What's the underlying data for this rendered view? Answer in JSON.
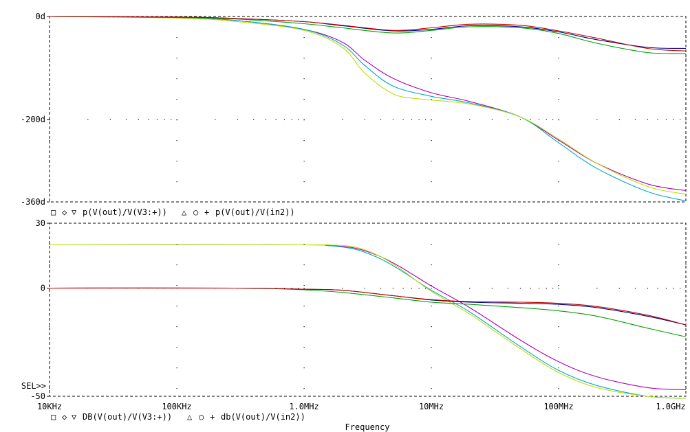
{
  "colors": {
    "magenta": "#b000b0",
    "cyan": "#00a8c8",
    "yellow": "#b8e000",
    "navy": "#000080",
    "green": "#00a000",
    "red": "#c00000"
  },
  "xaxis": {
    "label": "Frequency",
    "scale": "log",
    "range_hz": [
      10000,
      1000000000
    ],
    "ticks": [
      {
        "hz": 10000,
        "label": "10KHz"
      },
      {
        "hz": 100000,
        "label": "100KHz"
      },
      {
        "hz": 1000000,
        "label": "1.0MHz"
      },
      {
        "hz": 10000000,
        "label": "10MHz"
      },
      {
        "hz": 100000000,
        "label": "100MHz"
      },
      {
        "hz": 1000000000,
        "label": "1.0GHz"
      }
    ]
  },
  "sel_marker": "SEL>>",
  "chart_data": [
    {
      "type": "line",
      "panel": "phase",
      "ylim": [
        -360,
        0
      ],
      "yticks": [
        {
          "value": 0,
          "label": "0d"
        },
        {
          "value": -200,
          "label": "-200d"
        },
        {
          "value": -360,
          "label": "-360d"
        }
      ],
      "legend": [
        {
          "symbol": "□",
          "color": "magenta"
        },
        {
          "symbol": "◇",
          "color": "cyan"
        },
        {
          "symbol": "▽",
          "color": "yellow"
        },
        {
          "text": "p(V(out)/V(V3:+))"
        },
        {
          "symbol": "△",
          "color": "navy"
        },
        {
          "symbol": "○",
          "color": "green"
        },
        {
          "symbol": "+",
          "color": "red"
        },
        {
          "text": "p(V(out)/V(in2))"
        }
      ],
      "series": [
        {
          "color": "magenta",
          "x": [
            10000,
            100000,
            300000,
            1000000,
            2000000,
            3000000,
            5000000,
            10000000,
            20000000,
            50000000,
            100000000,
            200000000,
            500000000,
            1000000000
          ],
          "y": [
            0,
            -2,
            -8,
            -25,
            -50,
            -85,
            -120,
            -148,
            -165,
            -195,
            -240,
            -285,
            -325,
            -338
          ]
        },
        {
          "color": "cyan",
          "x": [
            10000,
            100000,
            300000,
            1000000,
            2000000,
            3000000,
            5000000,
            10000000,
            20000000,
            50000000,
            100000000,
            200000000,
            500000000,
            1000000000
          ],
          "y": [
            0,
            -2,
            -8,
            -25,
            -55,
            -95,
            -135,
            -155,
            -168,
            -195,
            -245,
            -295,
            -340,
            -358
          ]
        },
        {
          "color": "yellow",
          "x": [
            10000,
            100000,
            300000,
            1000000,
            2000000,
            3000000,
            5000000,
            8000000,
            20000000,
            50000000,
            100000000,
            200000000,
            500000000,
            1000000000
          ],
          "y": [
            0,
            -3,
            -10,
            -27,
            -60,
            -110,
            -150,
            -160,
            -170,
            -195,
            -238,
            -285,
            -330,
            -345
          ]
        },
        {
          "color": "navy",
          "x": [
            10000,
            100000,
            300000,
            1000000,
            2000000,
            5000000,
            10000000,
            20000000,
            50000000,
            100000000,
            200000000,
            500000000,
            1000000000
          ],
          "y": [
            0,
            -1,
            -4,
            -10,
            -18,
            -28,
            -25,
            -18,
            -20,
            -30,
            -45,
            -60,
            -62
          ]
        },
        {
          "color": "green",
          "x": [
            10000,
            100000,
            300000,
            1000000,
            2000000,
            5000000,
            10000000,
            20000000,
            50000000,
            100000000,
            200000000,
            500000000,
            1000000000
          ],
          "y": [
            0,
            -2,
            -5,
            -14,
            -22,
            -32,
            -27,
            -20,
            -22,
            -33,
            -52,
            -70,
            -72
          ]
        },
        {
          "color": "red",
          "x": [
            10000,
            100000,
            300000,
            1000000,
            2000000,
            5000000,
            10000000,
            20000000,
            50000000,
            100000000,
            200000000,
            500000000,
            1000000000
          ],
          "y": [
            0,
            -1,
            -4,
            -10,
            -17,
            -27,
            -22,
            -15,
            -17,
            -28,
            -42,
            -62,
            -67
          ]
        }
      ]
    },
    {
      "type": "line",
      "panel": "magnitude",
      "ylim": [
        -50,
        30
      ],
      "yticks": [
        {
          "value": 30,
          "label": "30"
        },
        {
          "value": 0,
          "label": "0"
        },
        {
          "value": -50,
          "label": "-50"
        }
      ],
      "legend": [
        {
          "symbol": "□",
          "color": "magenta"
        },
        {
          "symbol": "◇",
          "color": "cyan"
        },
        {
          "symbol": "▽",
          "color": "yellow"
        },
        {
          "text": "DB(V(out)/V(V3:+))"
        },
        {
          "symbol": "△",
          "color": "navy"
        },
        {
          "symbol": "○",
          "color": "green"
        },
        {
          "symbol": "+",
          "color": "red"
        },
        {
          "text": "db(V(out)/V(in2))"
        }
      ],
      "series": [
        {
          "color": "magenta",
          "x": [
            10000,
            1000000,
            1500000,
            2500000,
            4000000,
            6000000,
            10000000,
            20000000,
            50000000,
            100000000,
            200000000,
            500000000,
            1000000000
          ],
          "y": [
            20,
            20,
            19.8,
            18.5,
            14.5,
            9,
            1,
            -9,
            -24,
            -34,
            -41,
            -46,
            -47
          ]
        },
        {
          "color": "cyan",
          "x": [
            10000,
            1000000,
            1500000,
            2500000,
            4000000,
            6000000,
            10000000,
            20000000,
            50000000,
            100000000,
            200000000,
            500000000,
            1000000000
          ],
          "y": [
            20,
            20,
            19.7,
            18,
            13.5,
            7.5,
            -1,
            -11,
            -27,
            -38,
            -45,
            -50,
            -51
          ]
        },
        {
          "color": "yellow",
          "x": [
            10000,
            1000000,
            1500000,
            2500000,
            4000000,
            6000000,
            10000000,
            20000000,
            50000000,
            100000000,
            200000000,
            500000000,
            1000000000
          ],
          "y": [
            20,
            20,
            20,
            19,
            14.5,
            8,
            -1.5,
            -12,
            -28,
            -39,
            -46,
            -50,
            -51
          ]
        },
        {
          "color": "navy",
          "x": [
            10000,
            300000,
            1000000,
            2000000,
            5000000,
            10000000,
            20000000,
            50000000,
            100000000,
            200000000,
            500000000,
            1000000000
          ],
          "y": [
            0,
            0,
            -0.5,
            -1,
            -3.5,
            -5.5,
            -6.5,
            -7,
            -7.5,
            -9,
            -13,
            -17
          ]
        },
        {
          "color": "green",
          "x": [
            10000,
            300000,
            1000000,
            2000000,
            5000000,
            10000000,
            20000000,
            50000000,
            100000000,
            200000000,
            500000000,
            1000000000
          ],
          "y": [
            0,
            0,
            -0.8,
            -2,
            -4.5,
            -6.5,
            -7.5,
            -9,
            -10.5,
            -13,
            -18.5,
            -22.5
          ]
        },
        {
          "color": "red",
          "x": [
            10000,
            300000,
            1000000,
            2000000,
            5000000,
            10000000,
            20000000,
            50000000,
            100000000,
            200000000,
            500000000,
            1000000000
          ],
          "y": [
            0,
            0,
            -0.5,
            -1,
            -3.5,
            -5.3,
            -6.2,
            -6.5,
            -7,
            -8.5,
            -12.5,
            -17
          ]
        }
      ]
    }
  ]
}
